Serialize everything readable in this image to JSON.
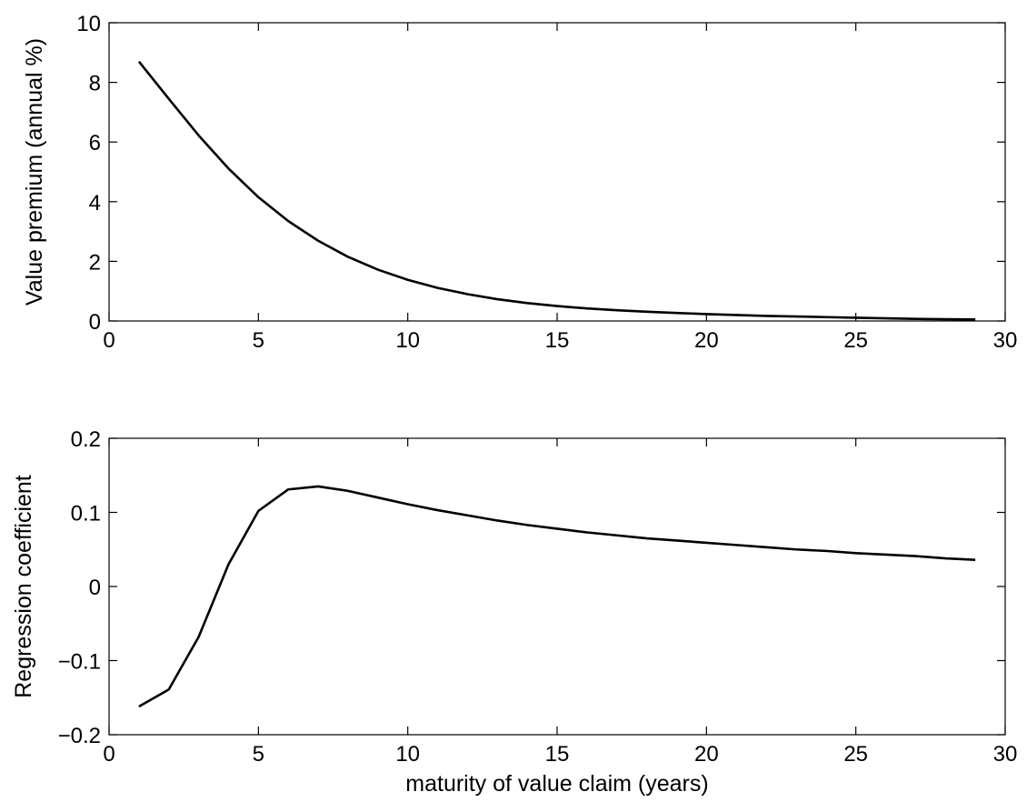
{
  "chart_data": [
    {
      "type": "line",
      "xlabel": "",
      "ylabel": "Value premium (annual %)",
      "xlim": [
        0,
        30
      ],
      "ylim": [
        0,
        10
      ],
      "xticks": [
        0,
        5,
        10,
        15,
        20,
        25,
        30
      ],
      "yticks": [
        0,
        2,
        4,
        6,
        8,
        10
      ],
      "xtick_labels": [
        "0",
        "5",
        "10",
        "15",
        "20",
        "25",
        "30"
      ],
      "ytick_labels": [
        "0",
        "2",
        "4",
        "6",
        "8",
        "10"
      ],
      "grid": false,
      "series": [
        {
          "color": "#000000",
          "x": [
            1,
            2,
            3,
            4,
            5,
            6,
            7,
            8,
            9,
            10,
            11,
            12,
            13,
            14,
            15,
            16,
            17,
            18,
            19,
            20,
            21,
            22,
            23,
            24,
            25,
            26,
            27,
            28,
            29
          ],
          "y": [
            8.7,
            7.45,
            6.22,
            5.11,
            4.15,
            3.35,
            2.69,
            2.15,
            1.72,
            1.38,
            1.11,
            0.9,
            0.73,
            0.6,
            0.5,
            0.42,
            0.36,
            0.31,
            0.27,
            0.23,
            0.2,
            0.17,
            0.15,
            0.13,
            0.11,
            0.09,
            0.07,
            0.06,
            0.05
          ]
        }
      ]
    },
    {
      "type": "line",
      "xlabel": "maturity of value claim (years)",
      "ylabel": "Regression coefficient",
      "xlim": [
        0,
        30
      ],
      "ylim": [
        -0.2,
        0.2
      ],
      "xticks": [
        0,
        5,
        10,
        15,
        20,
        25,
        30
      ],
      "yticks": [
        -0.2,
        -0.1,
        0,
        0.1,
        0.2
      ],
      "xtick_labels": [
        "0",
        "5",
        "10",
        "15",
        "20",
        "25",
        "30"
      ],
      "ytick_labels": [
        "−0.2",
        "−0.1",
        "0",
        "0.1",
        "0.2"
      ],
      "grid": false,
      "series": [
        {
          "color": "#000000",
          "x": [
            1,
            2,
            3,
            4,
            5,
            6,
            7,
            8,
            9,
            10,
            11,
            12,
            13,
            14,
            15,
            16,
            17,
            18,
            19,
            20,
            21,
            22,
            23,
            24,
            25,
            26,
            27,
            28,
            29
          ],
          "y": [
            -0.162,
            -0.139,
            -0.068,
            0.03,
            0.102,
            0.131,
            0.135,
            0.129,
            0.12,
            0.111,
            0.103,
            0.096,
            0.089,
            0.083,
            0.078,
            0.073,
            0.069,
            0.065,
            0.062,
            0.059,
            0.056,
            0.053,
            0.05,
            0.048,
            0.045,
            0.043,
            0.041,
            0.038,
            0.036
          ]
        }
      ]
    }
  ]
}
